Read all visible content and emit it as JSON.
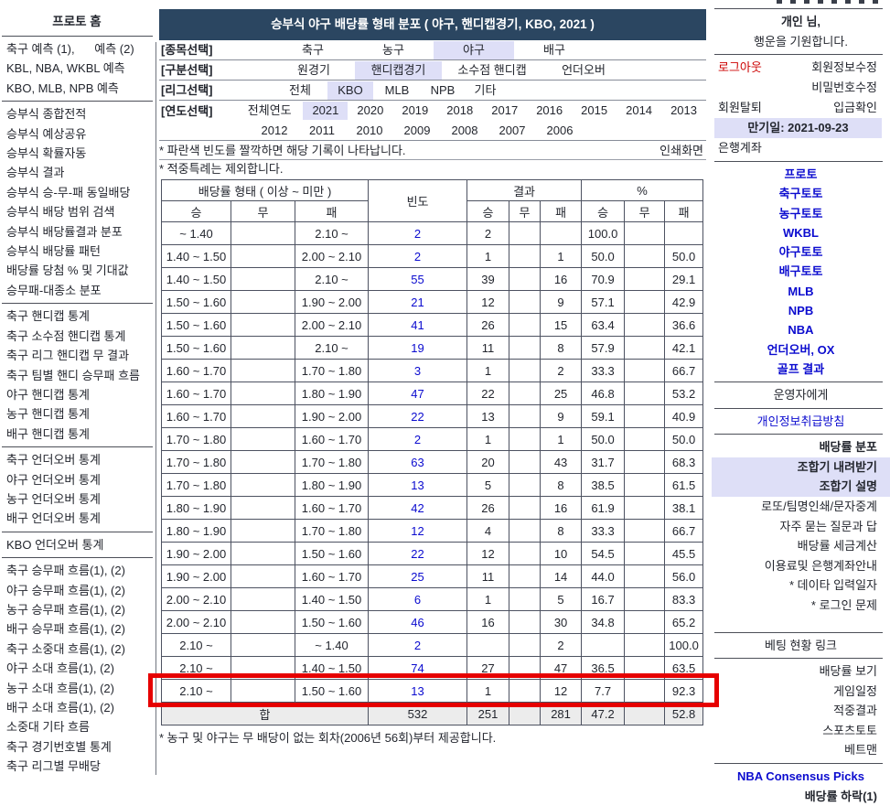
{
  "title": "승부식 야구 배당률 형태 분포 ( 야구, 핸디캡경기, KBO, 2021 )",
  "colors": {
    "title_bar_navy": "#2b4661",
    "selected_highlight": "#dedff7",
    "link_blue": "#0b0bcf",
    "alert_red": "#e60000",
    "logout_red": "#cc0000",
    "total_row_gray": "#ececec"
  },
  "left_sidebar": {
    "home": "프로토 홈",
    "groups": [
      [
        "축구 예측 (1),      예측 (2)",
        "KBL, NBA, WKBL 예측",
        "KBO, MLB, NPB 예측"
      ],
      [
        "승부식 종합전적",
        "승부식 예상공유",
        "승부식 확률자동",
        "승부식 결과",
        "승부식 승-무-패 동일배당",
        "승부식 배당 범위 검색",
        "승부식 배당률결과 분포",
        "승부식 배당률 패턴",
        "배당률 당첨 % 및 기대값",
        "승무패-대종소 분포"
      ],
      [
        "축구 핸디캡 통계",
        "축구 소수점 핸디캡 통계",
        "축구 리그 핸디캡 무 결과",
        "축구 팀별 핸디 승무패 흐름",
        "야구 핸디캡 통계",
        "농구 핸디캡 통계",
        "배구 핸디캡 통계"
      ],
      [
        "축구 언더오버 통계",
        "야구 언더오버 통계",
        "농구 언더오버 통계",
        "배구 언더오버 통계"
      ],
      [
        "KBO 언더오버 통계"
      ],
      [
        "축구 승무패 흐름(1), (2)",
        "야구 승무패 흐름(1), (2)",
        "농구 승무패 흐름(1), (2)",
        "배구 승무패 흐름(1), (2)",
        "축구 소중대 흐름(1), (2)",
        "야구 소대 흐름(1), (2)",
        "농구 소대 흐름(1), (2)",
        "배구 소대 흐름(1), (2)",
        "소중대 기타 흐름",
        "축구 경기번호별 통계",
        "축구 리그별 무배당"
      ]
    ]
  },
  "filters": [
    {
      "label": "[종목선택]",
      "options": [
        {
          "t": "축구"
        },
        {
          "t": "농구"
        },
        {
          "t": "야구",
          "sel": true
        },
        {
          "t": "배구"
        }
      ]
    },
    {
      "label": "[구분선택]",
      "options": [
        {
          "t": "원경기"
        },
        {
          "t": "핸디캡경기",
          "sel": true
        },
        {
          "t": "소수점 핸디캡"
        },
        {
          "t": "언더오버"
        }
      ]
    },
    {
      "label": "[리그선택]",
      "options": [
        {
          "t": "전체"
        },
        {
          "t": "KBO",
          "sel": true
        },
        {
          "t": "MLB"
        },
        {
          "t": "NPB"
        },
        {
          "t": "기타"
        }
      ]
    },
    {
      "label": "[연도선택]",
      "options": [
        {
          "t": "전체연도"
        },
        {
          "t": "2021",
          "sel": true
        },
        {
          "t": "2020"
        },
        {
          "t": "2019"
        },
        {
          "t": "2018"
        },
        {
          "t": "2017"
        },
        {
          "t": "2016"
        },
        {
          "t": "2015"
        },
        {
          "t": "2014"
        },
        {
          "t": "2013"
        }
      ],
      "options2": [
        {
          "t": "2012"
        },
        {
          "t": "2011"
        },
        {
          "t": "2010"
        },
        {
          "t": "2009"
        },
        {
          "t": "2008"
        },
        {
          "t": "2007"
        },
        {
          "t": "2006"
        }
      ]
    }
  ],
  "notes": {
    "click_hint": "* 파란색 빈도를 짤깍하면 해당 기록이 나타납니다.",
    "print_link": "인쇄화면",
    "exclusion": "* 적중특례는 제외합니다.",
    "bottom": "* 농구 및 야구는 무 배당이 없는 회차(2006년 56회)부터 제공합니다."
  },
  "table": {
    "header": {
      "odds_group": "배당률 형태 ( 이상 ~ 미만 )",
      "freq": "빈도",
      "result_group": "결과",
      "pct_group": "%",
      "win": "승",
      "draw": "무",
      "lose": "패"
    },
    "rows": [
      [
        "~ 1.40",
        "",
        "2.10 ~",
        "2",
        "2",
        "",
        "",
        "100.0",
        "",
        ""
      ],
      [
        "1.40 ~ 1.50",
        "",
        "2.00 ~ 2.10",
        "2",
        "1",
        "",
        "1",
        "50.0",
        "",
        "50.0"
      ],
      [
        "1.40 ~ 1.50",
        "",
        "2.10 ~",
        "55",
        "39",
        "",
        "16",
        "70.9",
        "",
        "29.1"
      ],
      [
        "1.50 ~ 1.60",
        "",
        "1.90 ~ 2.00",
        "21",
        "12",
        "",
        "9",
        "57.1",
        "",
        "42.9"
      ],
      [
        "1.50 ~ 1.60",
        "",
        "2.00 ~ 2.10",
        "41",
        "26",
        "",
        "15",
        "63.4",
        "",
        "36.6"
      ],
      [
        "1.50 ~ 1.60",
        "",
        "2.10 ~",
        "19",
        "11",
        "",
        "8",
        "57.9",
        "",
        "42.1"
      ],
      [
        "1.60 ~ 1.70",
        "",
        "1.70 ~ 1.80",
        "3",
        "1",
        "",
        "2",
        "33.3",
        "",
        "66.7"
      ],
      [
        "1.60 ~ 1.70",
        "",
        "1.80 ~ 1.90",
        "47",
        "22",
        "",
        "25",
        "46.8",
        "",
        "53.2"
      ],
      [
        "1.60 ~ 1.70",
        "",
        "1.90 ~ 2.00",
        "22",
        "13",
        "",
        "9",
        "59.1",
        "",
        "40.9"
      ],
      [
        "1.70 ~ 1.80",
        "",
        "1.60 ~ 1.70",
        "2",
        "1",
        "",
        "1",
        "50.0",
        "",
        "50.0"
      ],
      [
        "1.70 ~ 1.80",
        "",
        "1.70 ~ 1.80",
        "63",
        "20",
        "",
        "43",
        "31.7",
        "",
        "68.3"
      ],
      [
        "1.70 ~ 1.80",
        "",
        "1.80 ~ 1.90",
        "13",
        "5",
        "",
        "8",
        "38.5",
        "",
        "61.5"
      ],
      [
        "1.80 ~ 1.90",
        "",
        "1.60 ~ 1.70",
        "42",
        "26",
        "",
        "16",
        "61.9",
        "",
        "38.1"
      ],
      [
        "1.80 ~ 1.90",
        "",
        "1.70 ~ 1.80",
        "12",
        "4",
        "",
        "8",
        "33.3",
        "",
        "66.7"
      ],
      [
        "1.90 ~ 2.00",
        "",
        "1.50 ~ 1.60",
        "22",
        "12",
        "",
        "10",
        "54.5",
        "",
        "45.5"
      ],
      [
        "1.90 ~ 2.00",
        "",
        "1.60 ~ 1.70",
        "25",
        "11",
        "",
        "14",
        "44.0",
        "",
        "56.0"
      ],
      [
        "2.00 ~ 2.10",
        "",
        "1.40 ~ 1.50",
        "6",
        "1",
        "",
        "5",
        "16.7",
        "",
        "83.3"
      ],
      [
        "2.00 ~ 2.10",
        "",
        "1.50 ~ 1.60",
        "46",
        "16",
        "",
        "30",
        "34.8",
        "",
        "65.2"
      ],
      [
        "2.10 ~",
        "",
        "~ 1.40",
        "2",
        "",
        "",
        "2",
        "",
        "",
        "100.0"
      ],
      [
        "2.10 ~",
        "",
        "1.40 ~ 1.50",
        "74",
        "27",
        "",
        "47",
        "36.5",
        "",
        "63.5"
      ],
      [
        "2.10 ~",
        "",
        "1.50 ~ 1.60",
        "13",
        "1",
        "",
        "12",
        "7.7",
        "",
        "92.3"
      ]
    ],
    "highlight_row_index": 20,
    "total": {
      "label": "합",
      "freq": "532",
      "r_win": "251",
      "r_draw": "",
      "r_lose": "281",
      "p_win": "47.2",
      "p_draw": "",
      "p_lose": "52.8"
    }
  },
  "right_sidebar": {
    "greeting1": "개인 님,",
    "greeting2": "행운을 기원합니다.",
    "account": {
      "logout": "로그아웃",
      "edit_info": "회원정보수정",
      "edit_pw": "비밀번호수정",
      "withdraw": "회원탈퇴",
      "deposit": "입금확인",
      "expiry": "만기일: 2021-09-23",
      "bank": "은행계좌"
    },
    "toto_links": [
      "프로토",
      "축구토토",
      "농구토토",
      "WKBL",
      "야구토토",
      "배구토토",
      "MLB",
      "NPB",
      "NBA",
      "언더오버, OX",
      "골프 결과"
    ],
    "admin_link": "운영자에게",
    "privacy_link": "개인정보취급방침",
    "tools": [
      {
        "label": "배당률 분포",
        "bold": true
      },
      {
        "label": "조합기 내려받기",
        "bold": true,
        "highlight": true
      },
      {
        "label": "조합기 설명",
        "bold": true,
        "highlight": true
      },
      {
        "label": "로또/팀명인쇄/문자중계"
      },
      {
        "label": "자주 묻는 질문과 답"
      },
      {
        "label": "배당률 세금계산"
      },
      {
        "label": "이용료및 은행계좌안내"
      },
      {
        "label": "* 데이타 입력일자"
      },
      {
        "label": "* 로그인 문제"
      }
    ],
    "betting_header": "베팅 현황 링크",
    "betting_links": [
      "배당률 보기",
      "게임일정",
      "적중결과",
      "스포츠토토",
      "베트맨"
    ],
    "nba_link": "NBA Consensus Picks",
    "drop_link": "배당률 하락(1)"
  }
}
